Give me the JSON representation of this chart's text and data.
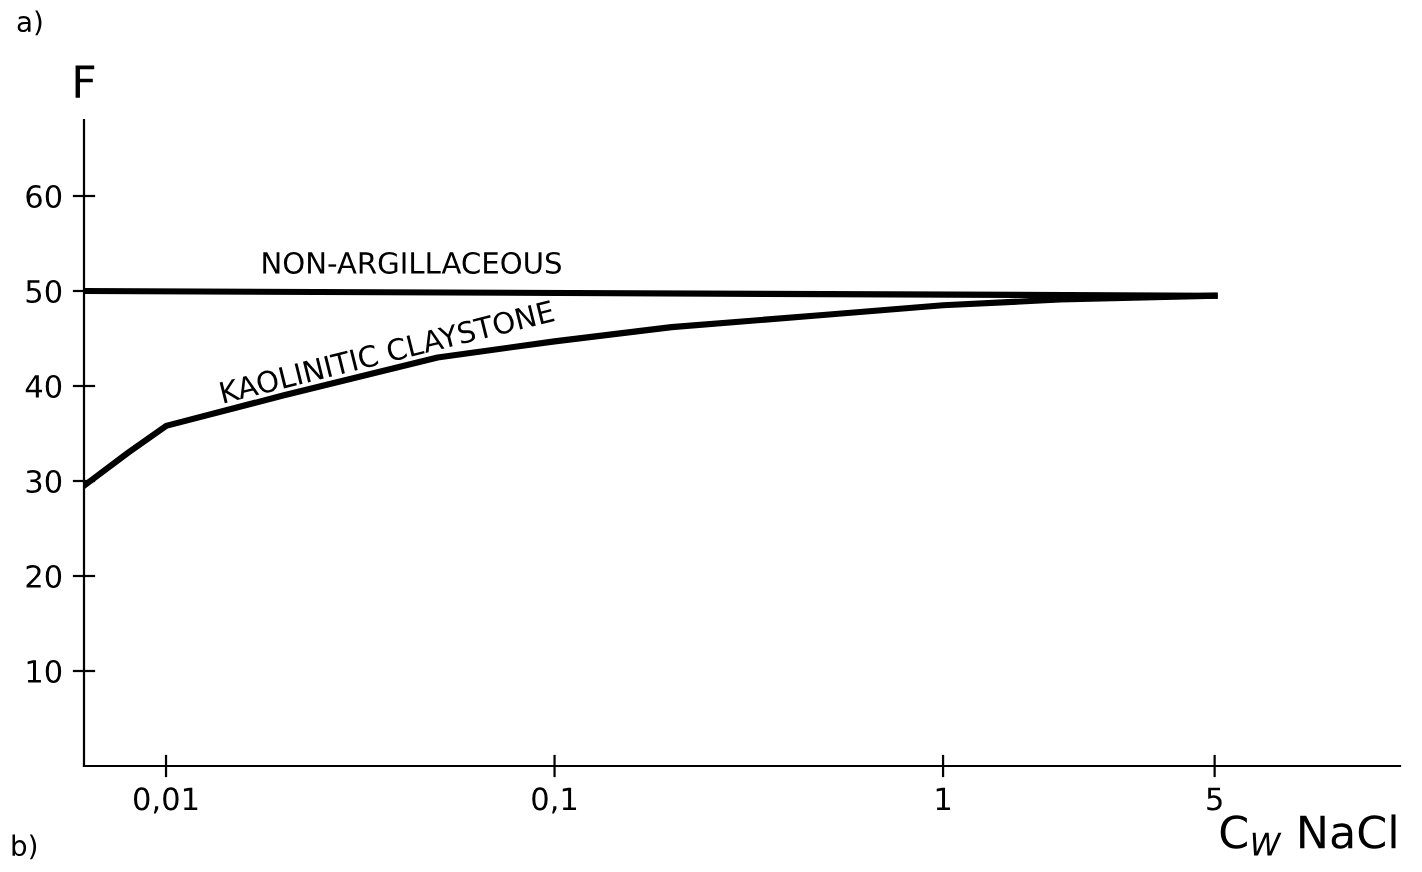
{
  "chart_data": {
    "type": "line",
    "xlabel": "C$_{W}$ NaCl",
    "ylabel": "F",
    "log": "x",
    "xlim": [
      0.00615,
      15
    ],
    "ylim": [
      0,
      68
    ],
    "xticks": [
      {
        "value": 0.01,
        "label": "0,01"
      },
      {
        "value": 0.1,
        "label": "0,1"
      },
      1,
      5
    ],
    "yticks": [
      10,
      20,
      30,
      40,
      50,
      60
    ],
    "grid": false,
    "legend": false,
    "marker": "none",
    "line_style": "solid",
    "series": [
      {
        "name": "NON-ARGILLACEOUS",
        "color": "#000000",
        "x": [
          0.00615,
          5
        ],
        "values": [
          50,
          49.5
        ]
      },
      {
        "name": "KAOLINITIC CLAYSTONE",
        "color": "#000000",
        "x": [
          0.00615,
          0.008,
          0.01,
          0.02,
          0.05,
          0.1,
          0.2,
          0.5,
          1,
          2,
          5
        ],
        "values": [
          29.5,
          33,
          35.8,
          39,
          43,
          44.7,
          46.2,
          47.5,
          48.5,
          49.1,
          49.5
        ]
      }
    ],
    "annotations": [
      "a)",
      "b)"
    ]
  }
}
